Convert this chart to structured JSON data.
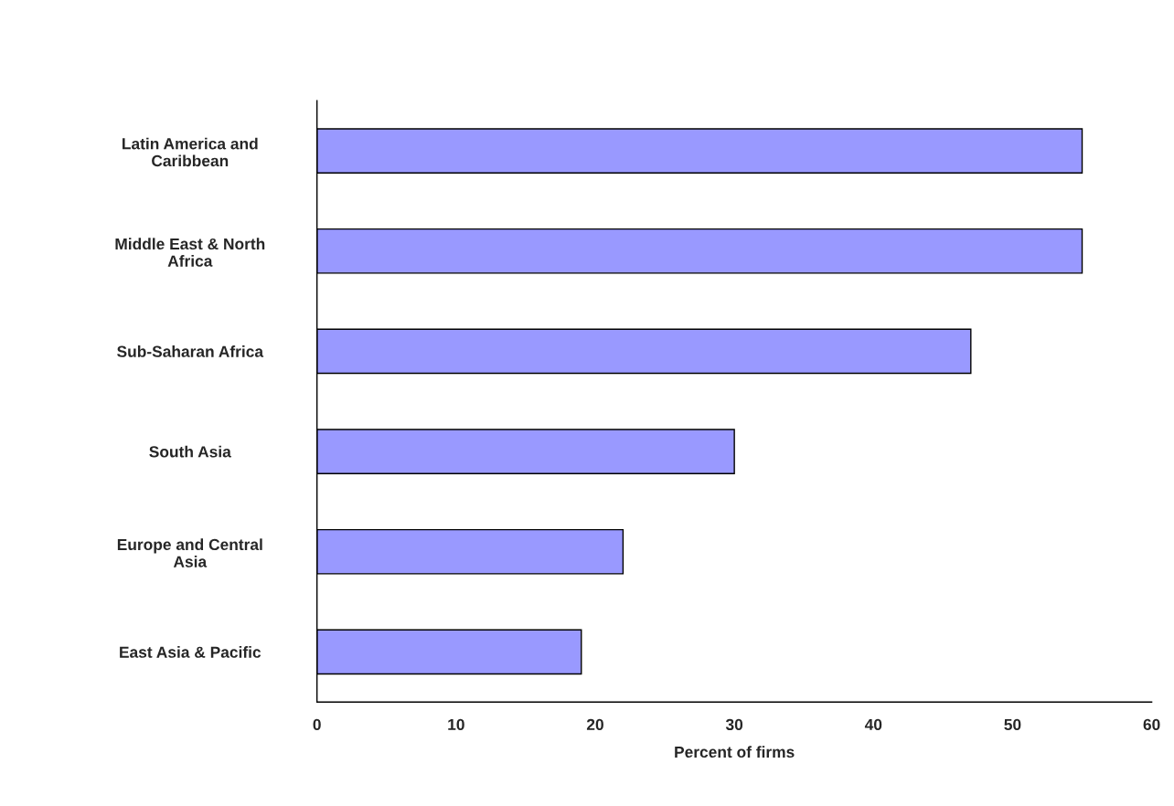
{
  "chart_data": {
    "type": "bar",
    "orientation": "horizontal",
    "xlabel": "Percent of firms",
    "categories": [
      "Latin America and\nCaribbean",
      "Middle East & North\nAfrica",
      "Sub-Saharan Africa",
      "South Asia",
      "Europe and Central\nAsia",
      "East Asia & Pacific"
    ],
    "values": [
      55,
      55,
      47,
      30,
      22,
      19
    ],
    "color": "#9999ff",
    "xlim": [
      0,
      60
    ],
    "xticks": [
      0,
      10,
      20,
      30,
      40,
      50,
      60
    ],
    "grid": false
  }
}
